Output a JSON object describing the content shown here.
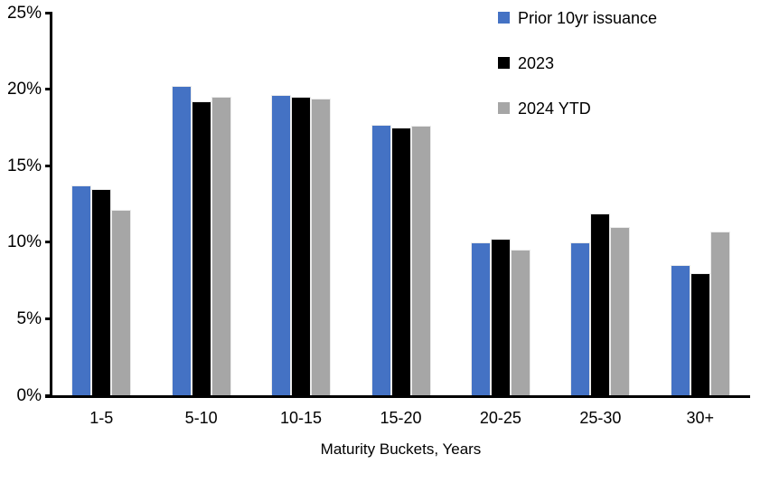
{
  "chart_data": {
    "type": "bar",
    "title": "",
    "categories": [
      "1-5",
      "5-10",
      "10-15",
      "15-20",
      "20-25",
      "25-30",
      "30+"
    ],
    "series": [
      {
        "name": "Prior 10yr issuance",
        "color": "#4472C4",
        "values": [
          13.7,
          20.2,
          19.6,
          17.7,
          10.0,
          10.0,
          8.5
        ]
      },
      {
        "name": "2023",
        "color": "#000000",
        "values": [
          13.5,
          19.2,
          19.5,
          17.5,
          10.2,
          11.9,
          8.0
        ]
      },
      {
        "name": "2024 YTD",
        "color": "#A6A6A6",
        "values": [
          12.1,
          19.5,
          19.4,
          17.6,
          9.5,
          11.0,
          10.7
        ]
      }
    ],
    "xlabel": "Maturity Buckets, Years",
    "ylabel": "",
    "ylim": [
      0,
      25
    ],
    "ytick_step": 5,
    "ytick_labels": [
      "0%",
      "5%",
      "10%",
      "15%",
      "20%",
      "25%"
    ],
    "grid": false,
    "legend_position": "top-right",
    "axis_color": "#000000",
    "background": "#FFFFFF"
  }
}
